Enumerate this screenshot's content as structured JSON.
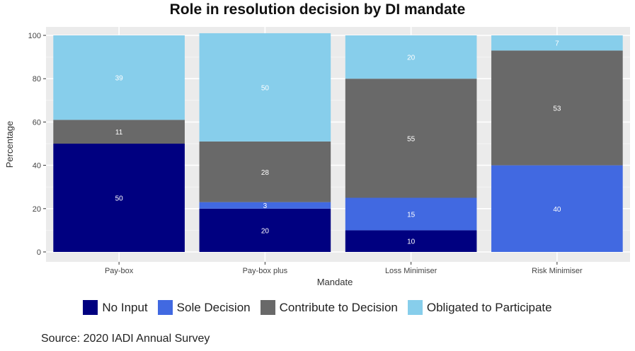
{
  "chart_data": {
    "type": "bar",
    "stacked": true,
    "title": "Role in resolution decision by DI mandate",
    "xlabel": "Mandate",
    "ylabel": "Percentage",
    "ylim": [
      0,
      100
    ],
    "yticks": [
      0,
      20,
      40,
      60,
      80,
      100
    ],
    "grid": true,
    "legend_position": "bottom",
    "categories": [
      "Pay-box",
      "Pay-box plus",
      "Loss Minimiser",
      "Risk Minimiser"
    ],
    "series": [
      {
        "name": "No Input",
        "color": "#000080",
        "values": [
          50,
          20,
          10,
          0
        ]
      },
      {
        "name": "Sole Decision",
        "color": "#4169E1",
        "values": [
          0,
          3,
          15,
          40
        ]
      },
      {
        "name": "Contribute to Decision",
        "color": "#696969",
        "values": [
          11,
          28,
          55,
          53
        ]
      },
      {
        "name": "Obligated to Participate",
        "color": "#87CEEB",
        "values": [
          39,
          50,
          20,
          7
        ]
      }
    ]
  },
  "source": "Source: 2020 IADI Annual Survey"
}
